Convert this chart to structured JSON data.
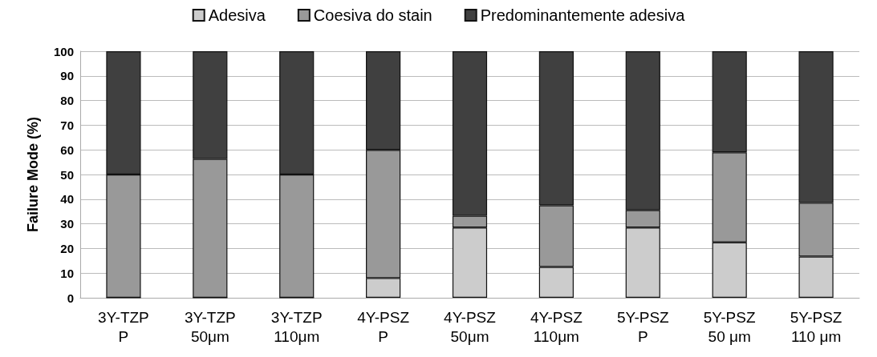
{
  "chart_data": {
    "type": "bar",
    "stacked": true,
    "ylabel": "Failure Mode (%)",
    "categories": [
      "3Y-TZP\nP",
      "3Y-TZP\n50μm",
      "3Y-TZP\n110μm",
      "4Y-PSZ\nP",
      "4Y-PSZ\n50μm",
      "4Y-PSZ\n110μm",
      "5Y-PSZ\nP",
      "5Y-PSZ\n50 μm",
      "5Y-PSZ\n110 μm"
    ],
    "series": [
      {
        "name": "Adesiva",
        "color": "#cccccc",
        "values": [
          0,
          0,
          0,
          8,
          28.5,
          12.5,
          28.5,
          22.5,
          16.7
        ]
      },
      {
        "name": "Coesiva do stain",
        "color": "#999999",
        "values": [
          50,
          56.3,
          50,
          52,
          4.8,
          25,
          7,
          36.5,
          21.8
        ]
      },
      {
        "name": "Predominantemente adesiva",
        "color": "#404040",
        "values": [
          50,
          43.7,
          50,
          40,
          66.7,
          62.5,
          64.5,
          41,
          61.5
        ]
      }
    ],
    "ylim": [
      0,
      100
    ],
    "yticks": [
      0,
      10,
      20,
      30,
      40,
      50,
      60,
      70,
      80,
      90,
      100
    ],
    "grid": "y",
    "legend": "top"
  }
}
